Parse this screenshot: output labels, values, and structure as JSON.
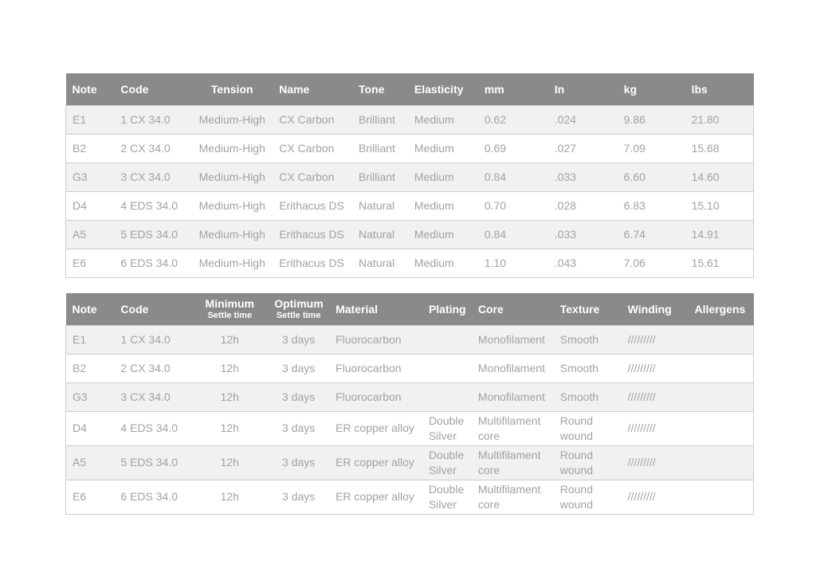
{
  "colors": {
    "header_bg": "#8a8a8a",
    "header_text": "#ffffff",
    "row_alt_bg": "#f1f1f1",
    "row_bg": "#ffffff",
    "cell_text": "#a2a2a2",
    "row_border": "#cccccc",
    "page_bg": "#ffffff"
  },
  "tables": [
    {
      "name": "string-spec-table",
      "columns": [
        {
          "label": "Note",
          "align": "left",
          "width": 7.06
        },
        {
          "label": "Code",
          "align": "left",
          "width": 11.23
        },
        {
          "label": "Tension",
          "align": "center",
          "width": 11.81
        },
        {
          "label": "Name",
          "align": "left",
          "width": 11.57
        },
        {
          "label": "Tone",
          "align": "left",
          "width": 8.1
        },
        {
          "label": "Elasticity",
          "align": "left",
          "width": 10.19
        },
        {
          "label": "mm",
          "align": "left",
          "width": 10.19
        },
        {
          "label": "In",
          "align": "left",
          "width": 10.07
        },
        {
          "label": "kg",
          "align": "left",
          "width": 9.84
        },
        {
          "label": "lbs",
          "align": "left",
          "width": 9.95
        }
      ],
      "rows": [
        [
          "E1",
          "1 CX 34.0",
          "Medium-High",
          "CX Carbon",
          "Brilliant",
          "Medium",
          "0.62",
          ".024",
          "9.86",
          "21.80"
        ],
        [
          "B2",
          "2 CX 34.0",
          "Medium-High",
          "CX Carbon",
          "Brilliant",
          "Medium",
          "0.69",
          ".027",
          "7.09",
          "15.68"
        ],
        [
          "G3",
          "3 CX 34.0",
          "Medium-High",
          "CX Carbon",
          "Brilliant",
          "Medium",
          "0.84",
          ".033",
          "6.60",
          "14.60"
        ],
        [
          "D4",
          "4 EDS 34.0",
          "Medium-High",
          "Erithacus DS",
          "Natural",
          "Medium",
          "0.70",
          ".028",
          "6.83",
          "15.10"
        ],
        [
          "A5",
          "5 EDS 34.0",
          "Medium-High",
          "Erithacus DS",
          "Natural",
          "Medium",
          "0.84",
          ".033",
          "6.74",
          "14.91"
        ],
        [
          "E6",
          "6 EDS 34.0",
          "Medium-High",
          "Erithacus DS",
          "Natural",
          "Medium",
          "1.10",
          ".043",
          "7.06",
          "15.61"
        ]
      ]
    },
    {
      "name": "string-care-table",
      "columns": [
        {
          "label": "Note",
          "align": "left",
          "width": 7.06
        },
        {
          "label": "Code",
          "align": "left",
          "width": 11.23
        },
        {
          "label": "Minimum",
          "sublabel": "Settle time",
          "align": "center",
          "width": 11.11
        },
        {
          "label": "Optimum",
          "sublabel": "Settle time",
          "align": "center",
          "width": 8.91
        },
        {
          "label": "Material",
          "align": "left",
          "width": 13.54
        },
        {
          "label": "Plating",
          "align": "left",
          "width": 7.18
        },
        {
          "label": "Core",
          "align": "left",
          "width": 11.92
        },
        {
          "label": "Texture",
          "align": "left",
          "width": 9.84
        },
        {
          "label": "Winding",
          "align": "left",
          "width": 9.72
        },
        {
          "label": "Allergens",
          "align": "left",
          "width": 9.49
        }
      ],
      "rows": [
        [
          "E1",
          "1 CX 34.0",
          "12h",
          "3 days",
          "Fluorocarbon",
          "",
          "Monofilament",
          "Smooth",
          "/////////",
          ""
        ],
        [
          "B2",
          "2 CX 34.0",
          "12h",
          "3 days",
          "Fluorocarbon",
          "",
          "Monofilament",
          "Smooth",
          "/////////",
          ""
        ],
        [
          "G3",
          "3 CX 34.0",
          "12h",
          "3 days",
          "Fluorocarbon",
          "",
          "Monofilament",
          "Smooth",
          "/////////",
          ""
        ],
        [
          "D4",
          "4 EDS 34.0",
          "12h",
          "3 days",
          "ER copper alloy",
          "Double\nSilver",
          "Multifilament\ncore",
          "Round\nwound",
          "/////////",
          ""
        ],
        [
          "A5",
          "5 EDS 34.0",
          "12h",
          "3 days",
          "ER copper alloy",
          "Double\nSilver",
          "Multifilament\ncore",
          "Round\nwound",
          "/////////",
          ""
        ],
        [
          "E6",
          "6 EDS 34.0",
          "12h",
          "3 days",
          "ER copper alloy",
          "Double\nSilver",
          "Multifilament\ncore",
          "Round\nwound",
          "/////////",
          ""
        ]
      ]
    }
  ]
}
